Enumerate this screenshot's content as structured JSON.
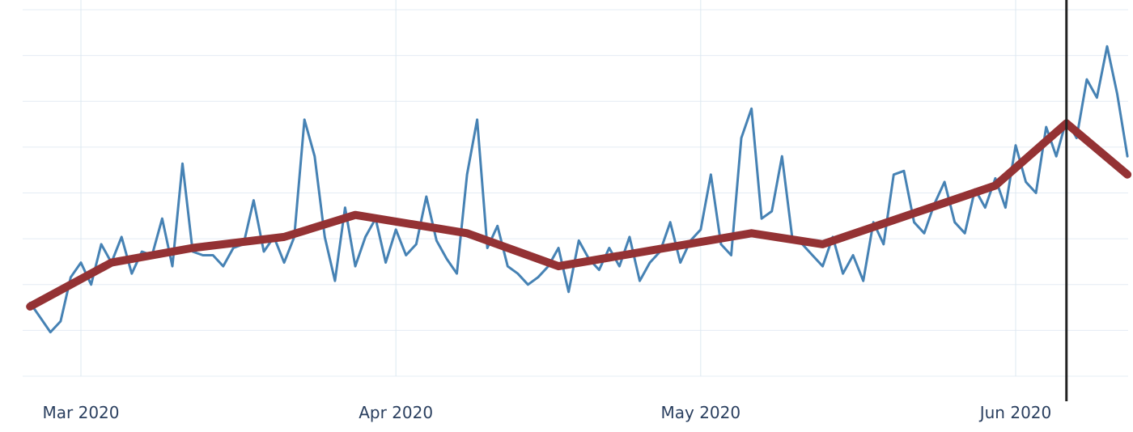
{
  "chart_data": {
    "type": "line",
    "title": "",
    "xlabel": "",
    "ylabel": "",
    "x_tick_labels": [
      "Mar 2020",
      "Apr 2020",
      "May 2020",
      "Jun 2020"
    ],
    "x_tick_dates": [
      "2020-03-01",
      "2020-04-01",
      "2020-05-01",
      "2020-06-01"
    ],
    "xlim": [
      "2020-02-25",
      "2020-06-12"
    ],
    "ylim": [
      0,
      10
    ],
    "grid": true,
    "y_tick_labels_shown": false,
    "legend": "none",
    "series": [
      {
        "color": "#4682b4",
        "x": [
          "2020-02-25",
          "2020-02-26",
          "2020-02-27",
          "2020-02-28",
          "2020-02-29",
          "2020-03-01",
          "2020-03-02",
          "2020-03-03",
          "2020-03-04",
          "2020-03-05",
          "2020-03-06",
          "2020-03-07",
          "2020-03-08",
          "2020-03-09",
          "2020-03-10",
          "2020-03-11",
          "2020-03-12",
          "2020-03-13",
          "2020-03-14",
          "2020-03-15",
          "2020-03-16",
          "2020-03-17",
          "2020-03-18",
          "2020-03-19",
          "2020-03-20",
          "2020-03-21",
          "2020-03-22",
          "2020-03-23",
          "2020-03-24",
          "2020-03-25",
          "2020-03-26",
          "2020-03-27",
          "2020-03-28",
          "2020-03-29",
          "2020-03-30",
          "2020-03-31",
          "2020-04-01",
          "2020-04-02",
          "2020-04-03",
          "2020-04-04",
          "2020-04-05",
          "2020-04-06",
          "2020-04-07",
          "2020-04-08",
          "2020-04-09",
          "2020-04-10",
          "2020-04-11",
          "2020-04-12",
          "2020-04-13",
          "2020-04-14",
          "2020-04-15",
          "2020-04-16",
          "2020-04-17",
          "2020-04-18",
          "2020-04-19",
          "2020-04-20",
          "2020-04-21",
          "2020-04-22",
          "2020-04-23",
          "2020-04-24",
          "2020-04-25",
          "2020-04-26",
          "2020-04-27",
          "2020-04-28",
          "2020-04-29",
          "2020-04-30",
          "2020-05-01",
          "2020-05-02",
          "2020-05-03",
          "2020-05-04",
          "2020-05-05",
          "2020-05-06",
          "2020-05-07",
          "2020-05-08",
          "2020-05-09",
          "2020-05-10",
          "2020-05-11",
          "2020-05-12",
          "2020-05-13",
          "2020-05-14",
          "2020-05-15",
          "2020-05-16",
          "2020-05-17",
          "2020-05-18",
          "2020-05-19",
          "2020-05-20",
          "2020-05-21",
          "2020-05-22",
          "2020-05-23",
          "2020-05-24",
          "2020-05-25",
          "2020-05-26",
          "2020-05-27",
          "2020-05-28",
          "2020-05-29",
          "2020-05-30",
          "2020-05-31",
          "2020-06-01",
          "2020-06-02",
          "2020-06-03",
          "2020-06-04",
          "2020-06-05",
          "2020-06-06",
          "2020-06-07",
          "2020-06-08",
          "2020-06-09",
          "2020-06-10",
          "2020-06-11",
          "2020-06-12"
        ],
        "values": [
          2.0,
          1.6,
          1.2,
          1.5,
          2.7,
          3.1,
          2.5,
          3.6,
          3.1,
          3.8,
          2.8,
          3.4,
          3.3,
          4.3,
          3.0,
          5.8,
          3.4,
          3.3,
          3.3,
          3.0,
          3.5,
          3.6,
          4.8,
          3.4,
          3.8,
          3.1,
          3.8,
          7.0,
          6.0,
          3.8,
          2.6,
          4.6,
          3.0,
          3.8,
          4.3,
          3.1,
          4.0,
          3.3,
          3.6,
          4.9,
          3.7,
          3.2,
          2.8,
          5.5,
          7.0,
          3.5,
          4.1,
          3.0,
          2.8,
          2.5,
          2.7,
          3.0,
          3.5,
          2.3,
          3.7,
          3.2,
          2.9,
          3.5,
          3.0,
          3.8,
          2.6,
          3.1,
          3.4,
          4.2,
          3.1,
          3.7,
          4.0,
          5.5,
          3.6,
          3.3,
          6.5,
          7.3,
          4.3,
          4.5,
          6.0,
          3.8,
          3.6,
          3.3,
          3.0,
          3.8,
          2.8,
          3.3,
          2.6,
          4.2,
          3.6,
          5.5,
          5.6,
          4.2,
          3.9,
          4.7,
          5.3,
          4.2,
          3.9,
          5.1,
          4.6,
          5.4,
          4.6,
          6.3,
          5.3,
          5.0,
          6.8,
          6.0,
          7.0,
          6.5,
          8.1,
          7.6,
          9.0,
          7.7,
          6.0
        ],
        "title": ""
      },
      {
        "color": "#943234",
        "x": [
          "2020-02-25",
          "2020-03-04",
          "2020-03-12",
          "2020-03-21",
          "2020-03-28",
          "2020-04-08",
          "2020-04-17",
          "2020-05-06",
          "2020-05-13",
          "2020-05-30",
          "2020-06-06",
          "2020-06-12"
        ],
        "values": [
          1.9,
          3.1,
          3.5,
          3.8,
          4.4,
          3.9,
          3.0,
          3.9,
          3.6,
          5.2,
          6.9,
          5.5
        ]
      }
    ],
    "annotations": [
      {
        "type": "vertical-line",
        "x": "2020-06-06",
        "color": "#222222"
      }
    ]
  }
}
